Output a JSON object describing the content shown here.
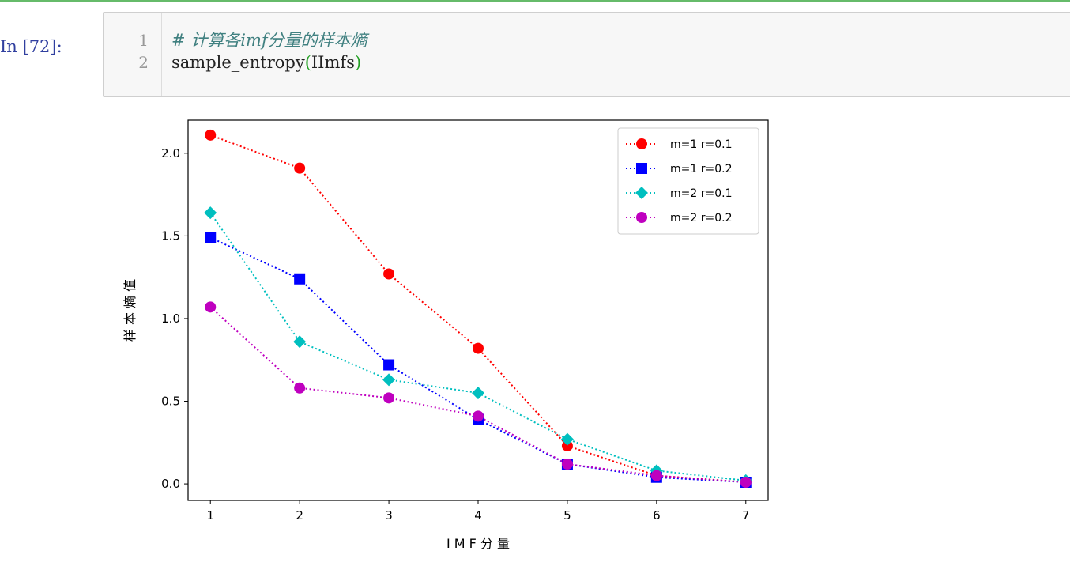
{
  "cell": {
    "prompt": "In [72]:",
    "lines": [
      {
        "num": "1",
        "comment": "# 计算各imf分量的样本熵"
      },
      {
        "num": "2",
        "func": "sample_entropy",
        "open": "(",
        "arg": "IImfs",
        "close": ")"
      }
    ]
  },
  "chart_data": {
    "type": "line",
    "title": "",
    "xlabel": "I M F 分 量",
    "ylabel": "样 本 熵 值",
    "x": [
      1,
      2,
      3,
      4,
      5,
      6,
      7
    ],
    "xlim": [
      0.75,
      7.25
    ],
    "ylim": [
      -0.1,
      2.2
    ],
    "xticks": [
      1,
      2,
      3,
      4,
      5,
      6,
      7
    ],
    "yticks": [
      0.0,
      0.5,
      1.0,
      1.5,
      2.0
    ],
    "ytick_labels": [
      "0.0",
      "0.5",
      "1.0",
      "1.5",
      "2.0"
    ],
    "grid": false,
    "legend_position": "upper-right",
    "series": [
      {
        "name": "m=1 r=0.1",
        "color": "#ff0000",
        "marker": "circle",
        "values": [
          2.11,
          1.91,
          1.27,
          0.82,
          0.23,
          0.05,
          0.01
        ]
      },
      {
        "name": "m=1 r=0.2",
        "color": "#0000ff",
        "marker": "square",
        "values": [
          1.49,
          1.24,
          0.72,
          0.39,
          0.12,
          0.04,
          0.01
        ]
      },
      {
        "name": "m=2 r=0.1",
        "color": "#00bfbf",
        "marker": "diamond",
        "values": [
          1.64,
          0.86,
          0.63,
          0.55,
          0.27,
          0.08,
          0.02
        ]
      },
      {
        "name": "m=2 r=0.2",
        "color": "#bf00bf",
        "marker": "circle",
        "values": [
          1.07,
          0.58,
          0.52,
          0.41,
          0.12,
          0.05,
          0.01
        ]
      }
    ]
  }
}
